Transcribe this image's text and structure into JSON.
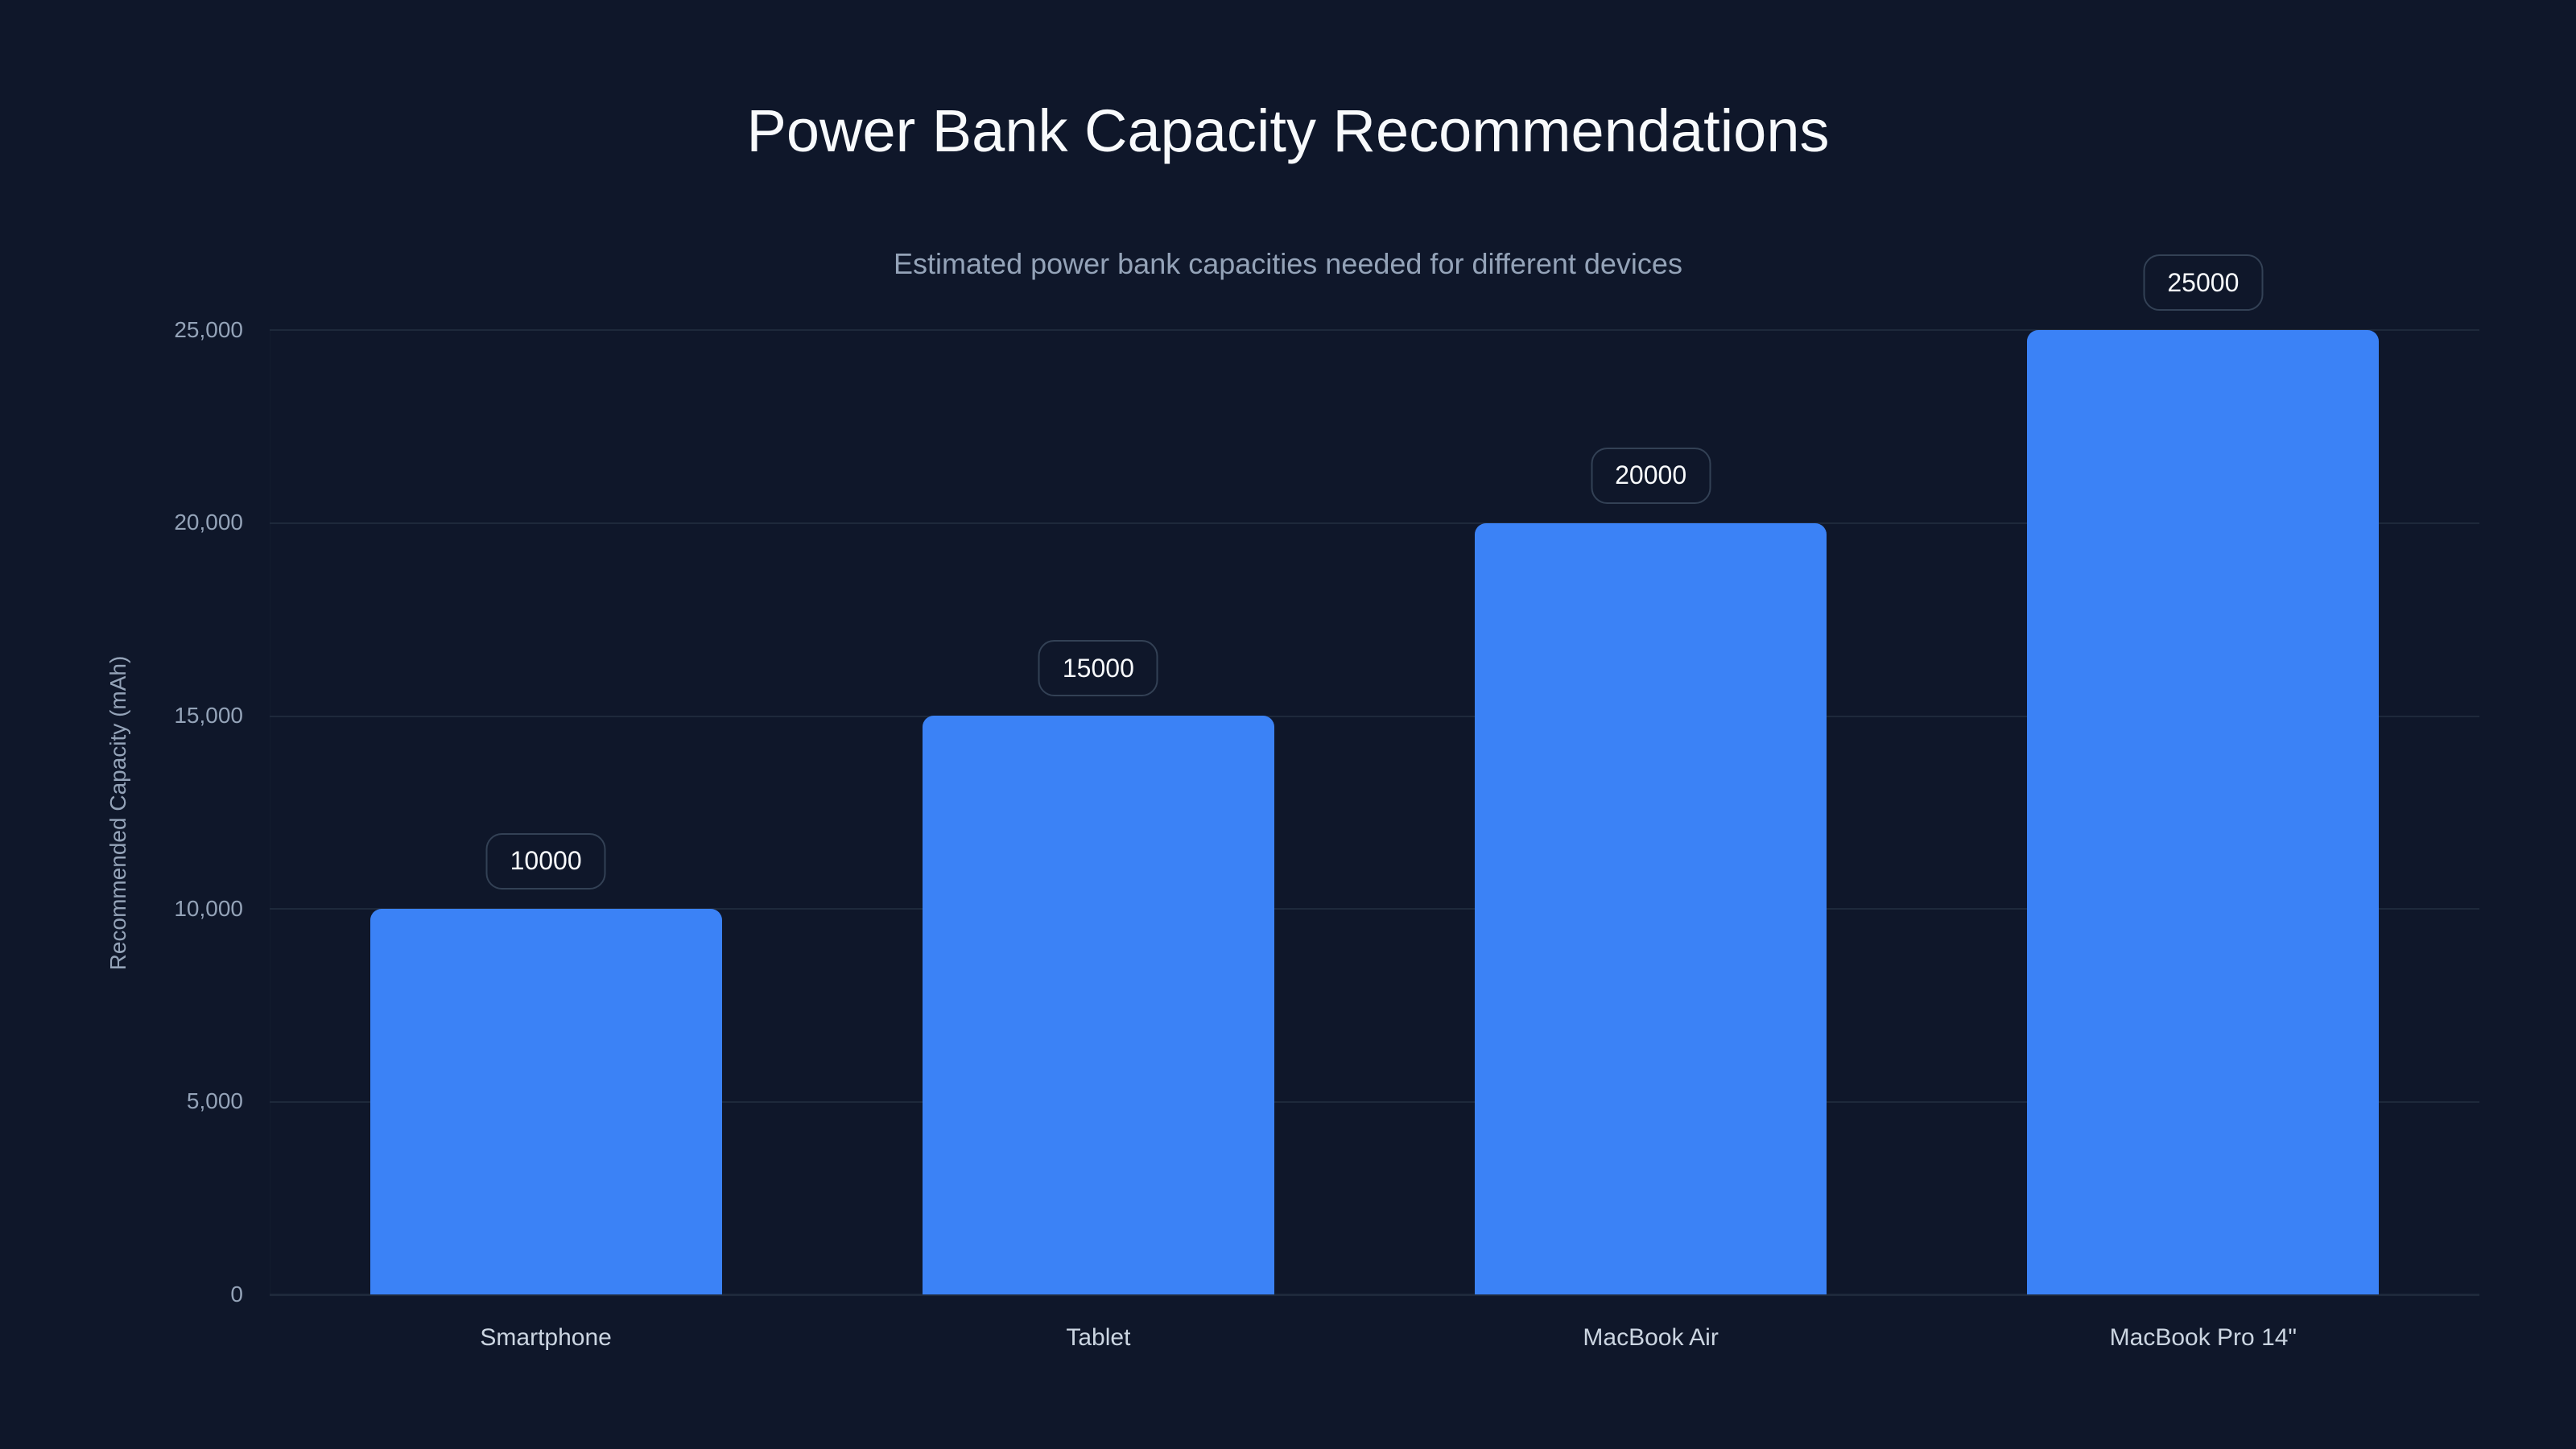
{
  "header": {
    "title": "Power Bank Capacity Recommendations",
    "subtitle": "Estimated power bank capacities needed for different devices"
  },
  "axes": {
    "y_title": "Recommended Capacity (mAh)",
    "y_ticks": [
      "0",
      "5,000",
      "10,000",
      "15,000",
      "20,000",
      "25,000"
    ]
  },
  "bars": [
    {
      "category": "Smartphone",
      "value": 10000,
      "label": "10000"
    },
    {
      "category": "Tablet",
      "value": 15000,
      "label": "15000"
    },
    {
      "category": "MacBook Air",
      "value": 20000,
      "label": "20000"
    },
    {
      "category": "MacBook Pro 14\"",
      "value": 25000,
      "label": "25000"
    }
  ],
  "colors": {
    "background": "#0f172a",
    "bar": "#3b82f6",
    "grid": "#1e293b",
    "pill_border": "#334155",
    "title": "#f8fafc",
    "muted_text": "#94a3b8"
  },
  "chart_data": {
    "type": "bar",
    "title": "Power Bank Capacity Recommendations",
    "subtitle": "Estimated power bank capacities needed for different devices",
    "categories": [
      "Smartphone",
      "Tablet",
      "MacBook Air",
      "MacBook Pro 14\""
    ],
    "values": [
      10000,
      15000,
      20000,
      25000
    ],
    "data_labels": [
      "10000",
      "15000",
      "20000",
      "25000"
    ],
    "xlabel": "",
    "ylabel": "Recommended Capacity (mAh)",
    "ylim": [
      0,
      25000
    ],
    "yticks": [
      0,
      5000,
      10000,
      15000,
      20000,
      25000
    ],
    "grid": true,
    "legend": null
  }
}
